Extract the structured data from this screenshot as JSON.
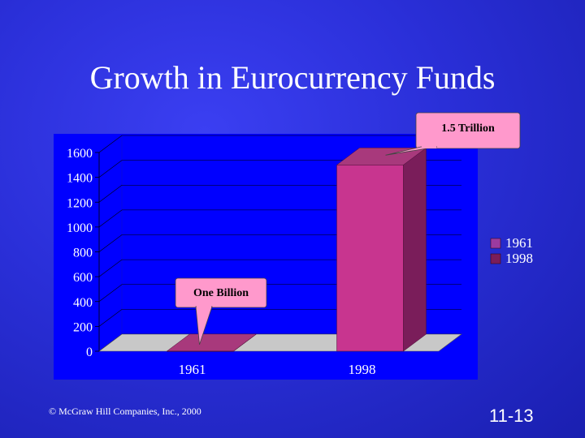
{
  "slide": {
    "title": "Growth in Eurocurrency Funds",
    "copyright": "© McGraw Hill Companies, Inc., 2000",
    "slide_number": "11-13"
  },
  "colors": {
    "background": "#2a2fd8",
    "plot_background": "#0000ff",
    "floor": "#c8c8c8",
    "bar_front": "#c8358f",
    "bar_side": "#7a1d5a",
    "bar_top": "#a8397c",
    "callout_fill": "#ff99cc"
  },
  "chart_data": {
    "type": "bar",
    "categories": [
      "1961",
      "1998"
    ],
    "series": [
      {
        "name": "1961",
        "values": [
          1,
          null
        ]
      },
      {
        "name": "1998",
        "values": [
          null,
          1500
        ]
      }
    ],
    "yticks": [
      0,
      200,
      400,
      600,
      800,
      1000,
      1200,
      1400,
      1600
    ],
    "ylim": [
      0,
      1600
    ],
    "legend_position": "right",
    "annotations": [
      {
        "category": "1961",
        "text": "One Billion"
      },
      {
        "category": "1998",
        "text": "1.5 Trillion"
      }
    ]
  }
}
